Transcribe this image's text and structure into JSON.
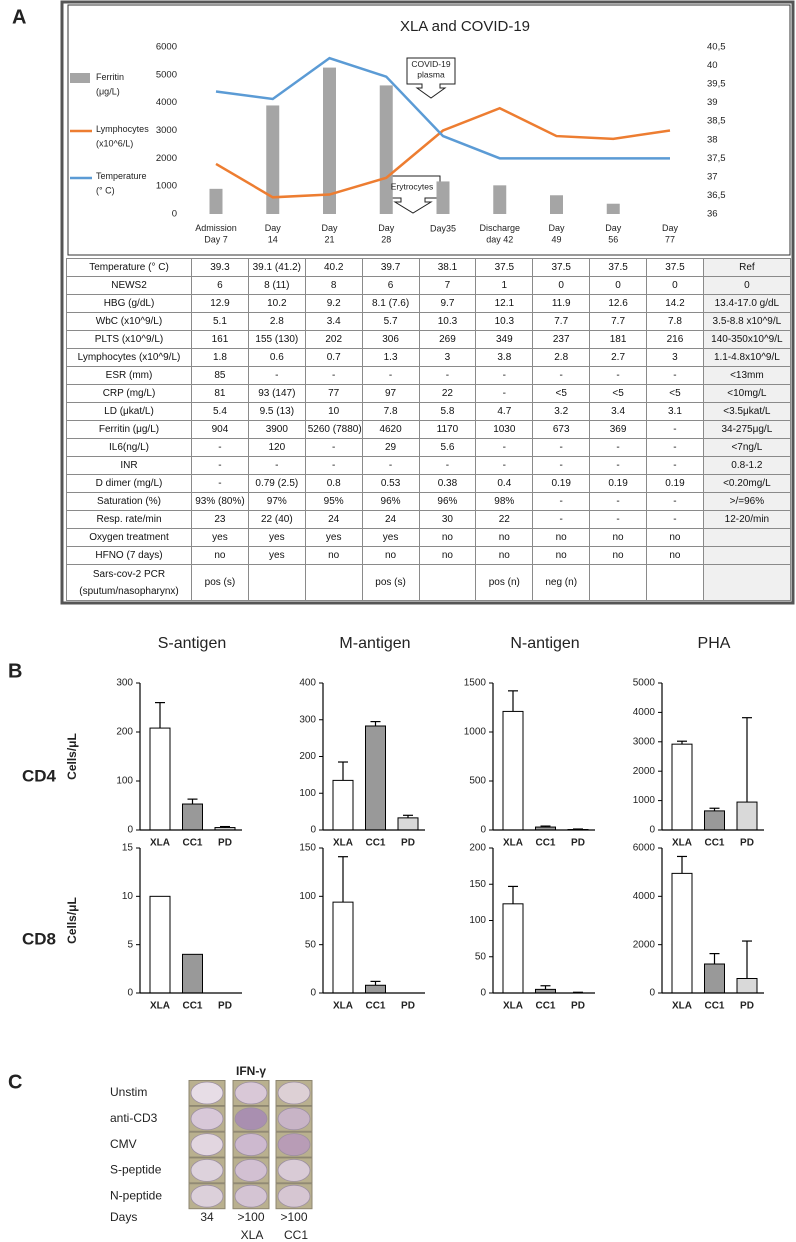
{
  "panel_labels": [
    "A",
    "B",
    "C"
  ],
  "chart_data": [
    {
      "type": "combo",
      "title": "XLA and COVID-19",
      "categories": [
        "Admission Day 7",
        "Day 14",
        "Day 21",
        "Day 28",
        "Day35",
        "Discharge day 42",
        "Day 49",
        "Day 56",
        "Day 77"
      ],
      "series": [
        {
          "name": "Ferritin (μg/L)",
          "type": "bar",
          "color": "#a5a5a5",
          "values": [
            904,
            3900,
            5260,
            4620,
            1170,
            1030,
            673,
            369,
            null
          ]
        },
        {
          "name": "Lymphocytes (x10^6/L)",
          "type": "line",
          "color": "#ed7d31",
          "values": [
            1800,
            600,
            700,
            1300,
            3000,
            3800,
            2800,
            2700,
            3000
          ]
        },
        {
          "name": "Temperature (° C)",
          "type": "line",
          "axis": "y2",
          "color": "#5b9bd5",
          "values": [
            39.3,
            39.1,
            40.2,
            39.7,
            38.1,
            37.5,
            37.5,
            37.5,
            37.5
          ]
        }
      ],
      "ylim": [
        0,
        6000
      ],
      "yticks": [
        0,
        1000,
        2000,
        3000,
        4000,
        5000,
        6000
      ],
      "y2lim": [
        36,
        40.5
      ],
      "y2ticks": [
        36,
        {
          "value": 36.5,
          "label": "36,5"
        },
        37,
        {
          "value": 37.5,
          "label": "37,5"
        },
        38,
        {
          "value": 38.5,
          "label": "38,5"
        },
        39,
        {
          "value": 39.5,
          "label": "39,5"
        },
        40,
        {
          "value": 40.5,
          "label": "40,5"
        }
      ],
      "legend": "left",
      "grid": false,
      "annotations": [
        {
          "text": "COVID-19 plasma"
        },
        {
          "text": "Erytrocytes"
        }
      ]
    },
    {
      "type": "bar",
      "title": "S-antigen",
      "ylabel": "Cells/μL",
      "categories": [
        "XLA",
        "CC1",
        "PD"
      ],
      "values": [
        208,
        53,
        5
      ],
      "errors": [
        52,
        10,
        2
      ],
      "colors": [
        "#ffffff",
        "#999999",
        "#d9d9d9"
      ],
      "ylim": [
        0,
        300
      ],
      "yticks": [
        0,
        100,
        200,
        300
      ]
    },
    {
      "type": "bar",
      "title": "M-antigen",
      "categories": [
        "XLA",
        "CC1",
        "PD"
      ],
      "values": [
        135,
        283,
        33
      ],
      "errors": [
        50,
        12,
        7
      ],
      "colors": [
        "#ffffff",
        "#999999",
        "#d9d9d9"
      ],
      "ylim": [
        0,
        400
      ],
      "yticks": [
        0,
        100,
        200,
        300,
        400
      ]
    },
    {
      "type": "bar",
      "title": "N-antigen",
      "categories": [
        "XLA",
        "CC1",
        "PD"
      ],
      "values": [
        1210,
        30,
        5
      ],
      "errors": [
        210,
        10,
        5
      ],
      "colors": [
        "#ffffff",
        "#999999",
        "#d9d9d9"
      ],
      "ylim": [
        0,
        1500
      ],
      "yticks": [
        0,
        500,
        1000,
        1500
      ]
    },
    {
      "type": "bar",
      "title": "PHA",
      "categories": [
        "XLA",
        "CC1",
        "PD"
      ],
      "values": [
        2920,
        650,
        950
      ],
      "errors": [
        100,
        90,
        2870
      ],
      "colors": [
        "#ffffff",
        "#999999",
        "#d9d9d9"
      ],
      "ylim": [
        0,
        5000
      ],
      "yticks": [
        0,
        1000,
        2000,
        3000,
        4000,
        5000
      ]
    },
    {
      "type": "bar",
      "ylabel": "Cells/μL",
      "categories": [
        "XLA",
        "CC1",
        "PD"
      ],
      "values": [
        10,
        4,
        0
      ],
      "errors": [
        null,
        null,
        null
      ],
      "colors": [
        "#ffffff",
        "#999999",
        "#d9d9d9"
      ],
      "ylim": [
        0,
        15
      ],
      "yticks": [
        0,
        5,
        10,
        15
      ]
    },
    {
      "type": "bar",
      "categories": [
        "XLA",
        "CC1",
        "PD"
      ],
      "values": [
        94,
        8,
        0
      ],
      "errors": [
        47,
        4,
        null
      ],
      "colors": [
        "#ffffff",
        "#999999",
        "#d9d9d9"
      ],
      "ylim": [
        0,
        150
      ],
      "yticks": [
        0,
        50,
        100,
        150
      ]
    },
    {
      "type": "bar",
      "categories": [
        "XLA",
        "CC1",
        "PD"
      ],
      "values": [
        123,
        5,
        0
      ],
      "errors": [
        24,
        5,
        1
      ],
      "colors": [
        "#ffffff",
        "#999999",
        "#d9d9d9"
      ],
      "ylim": [
        0,
        200
      ],
      "yticks": [
        0,
        50,
        100,
        150,
        200
      ]
    },
    {
      "type": "bar",
      "categories": [
        "XLA",
        "CC1",
        "PD"
      ],
      "values": [
        4950,
        1200,
        600
      ],
      "errors": [
        700,
        430,
        1550
      ],
      "colors": [
        "#ffffff",
        "#999999",
        "#d9d9d9"
      ],
      "ylim": [
        0,
        6000
      ],
      "yticks": [
        0,
        2000,
        4000,
        6000
      ]
    }
  ],
  "panel_b_rows": [
    "CD4",
    "CD8"
  ],
  "table": {
    "rows": [
      [
        "Temperature (° C)",
        "39.3",
        "39.1 (41.2)",
        "40.2",
        "39.7",
        "38.1",
        "37.5",
        "37.5",
        "37.5",
        "37.5",
        "Ref"
      ],
      [
        "NEWS2",
        "6",
        "8 (11)",
        "8",
        "6",
        "7",
        "1",
        "0",
        "0",
        "0",
        "0"
      ],
      [
        "HBG (g/dL)",
        "12.9",
        "10.2",
        "9.2",
        "8.1 (7.6)",
        "9.7",
        "12.1",
        "11.9",
        "12.6",
        "14.2",
        "13.4-17.0 g/dL"
      ],
      [
        "WbC (x10^9/L)",
        "5.1",
        "2.8",
        "3.4",
        "5.7",
        "10.3",
        "10.3",
        "7.7",
        "7.7",
        "7.8",
        "3.5-8.8 x10^9/L"
      ],
      [
        "PLTS (x10^9/L)",
        "161",
        "155 (130)",
        "202",
        "306",
        "269",
        "349",
        "237",
        "181",
        "216",
        "140-350x10^9/L"
      ],
      [
        "Lymphocytes (x10^9/L)",
        "1.8",
        "0.6",
        "0.7",
        "1.3",
        "3",
        "3.8",
        "2.8",
        "2.7",
        "3",
        "1.1-4.8x10^9/L"
      ],
      [
        "ESR (mm)",
        "85",
        "-",
        "-",
        "-",
        "-",
        "-",
        "-",
        "-",
        "-",
        "<13mm"
      ],
      [
        "CRP (mg/L)",
        "81",
        "93 (147)",
        "77",
        "97",
        "22",
        "-",
        "<5",
        "<5",
        "<5",
        "<10mg/L"
      ],
      [
        "LD (μkat/L)",
        "5.4",
        "9.5 (13)",
        "10",
        "7.8",
        "5.8",
        "4.7",
        "3.2",
        "3.4",
        "3.1",
        "<3.5μkat/L"
      ],
      [
        "Ferritin (μg/L)",
        "904",
        "3900",
        "5260 (7880)",
        "4620",
        "1170",
        "1030",
        "673",
        "369",
        "-",
        "34-275μg/L"
      ],
      [
        "IL6(ng/L)",
        "-",
        "120",
        "-",
        "29",
        "5.6",
        "-",
        "-",
        "-",
        "-",
        "<7ng/L"
      ],
      [
        "INR",
        "-",
        "-",
        "-",
        "-",
        "-",
        "-",
        "-",
        "-",
        "-",
        "0.8-1.2"
      ],
      [
        "D dimer (mg/L)",
        "-",
        "0.79 (2.5)",
        "0.8",
        "0.53",
        "0.38",
        "0.4",
        "0.19",
        "0.19",
        "0.19",
        "<0.20mg/L"
      ],
      [
        "Saturation (%)",
        "93% (80%)",
        "97%",
        "95%",
        "96%",
        "96%",
        "98%",
        "-",
        "-",
        "-",
        ">/=96%"
      ],
      [
        "Resp. rate/min",
        "23",
        "22 (40)",
        "24",
        "24",
        "30",
        "22",
        "-",
        "-",
        "-",
        "12-20/min"
      ],
      [
        "Oxygen treatment",
        "yes",
        "yes",
        "yes",
        "yes",
        "no",
        "no",
        "no",
        "no",
        "no",
        null
      ],
      [
        "HFNO (7 days)",
        "no",
        "yes",
        "no",
        "no",
        "no",
        "no",
        "no",
        "no",
        "no",
        null
      ],
      [
        "Sars-cov-2 PCR (sputum/nasopharynx)",
        "pos (s)",
        null,
        null,
        "pos (s)",
        null,
        "pos (n)",
        "neg (n)",
        null,
        null,
        null
      ]
    ]
  },
  "panel_c": {
    "title": "IFN-γ",
    "rows": [
      "Unstim",
      "anti-CD3",
      "CMV",
      "S-peptide",
      "N-peptide"
    ],
    "days_label": "Days",
    "days": [
      "34",
      ">100",
      ">100"
    ],
    "groups": [
      "XLA",
      "CC1"
    ]
  }
}
